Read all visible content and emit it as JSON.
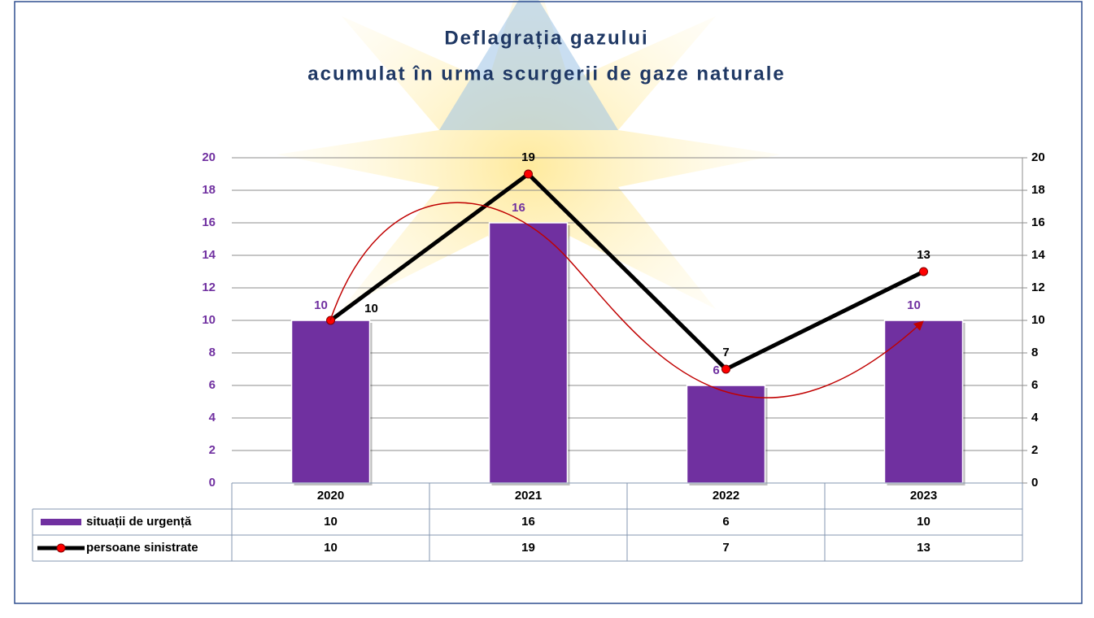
{
  "chart_data": {
    "type": "combo",
    "title": [
      "Deflagrația gazului",
      "acumulat în urma scurgerii de gaze naturale"
    ],
    "categories": [
      "2020",
      "2021",
      "2022",
      "2023"
    ],
    "series": [
      {
        "name": "situații de urgență",
        "type": "bar",
        "color": "#7030a0",
        "values": [
          10,
          16,
          6,
          10
        ]
      },
      {
        "name": "persoane sinistrate",
        "type": "line",
        "color": "#000000",
        "marker_color": "#ff0000",
        "axis": "y2",
        "values": [
          10,
          19,
          7,
          13
        ]
      }
    ],
    "ylim": [
      0,
      20
    ],
    "yticks": [
      0,
      2,
      4,
      6,
      8,
      10,
      12,
      14,
      16,
      18,
      20
    ],
    "y2lim": [
      0,
      20
    ],
    "y2ticks": [
      0,
      2,
      4,
      6,
      8,
      10,
      12,
      14,
      16,
      18,
      20
    ],
    "grid": true
  }
}
